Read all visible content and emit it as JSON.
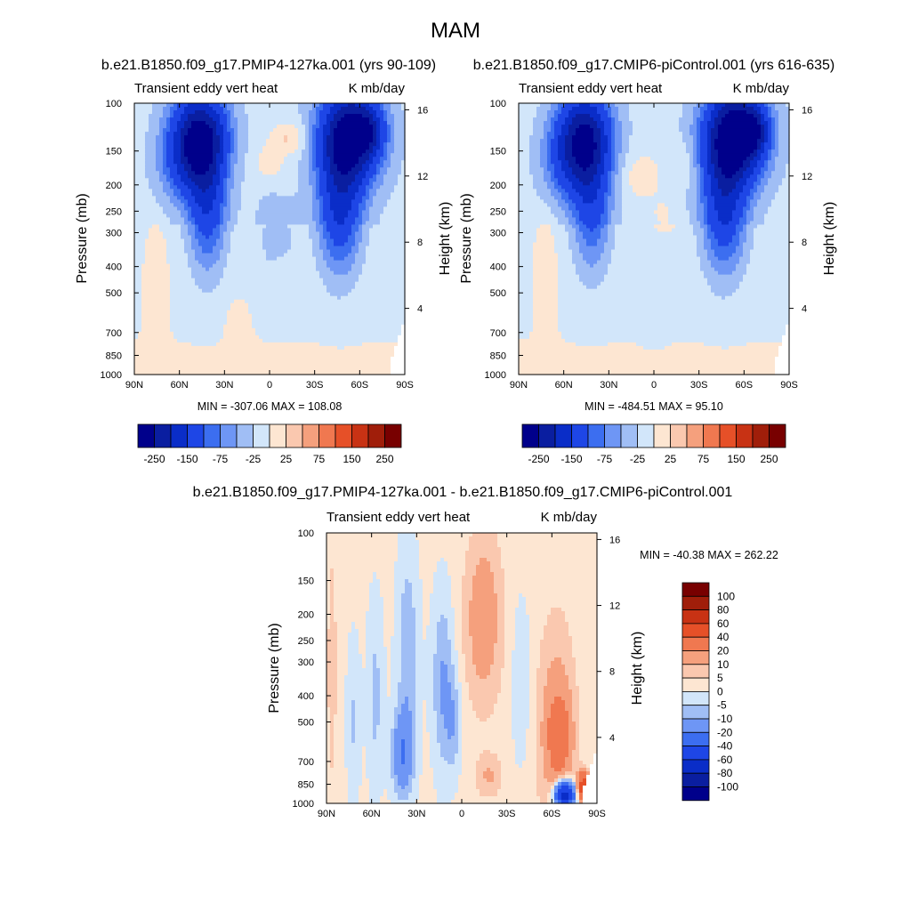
{
  "figure_title": "MAM",
  "colors": {
    "cb_main": [
      "#00008b",
      "#0a1ea0",
      "#0a2dc8",
      "#1e46e6",
      "#3c6ef0",
      "#6e96f5",
      "#a0bef5",
      "#d2e6fa",
      "#fde6d2",
      "#fac8af",
      "#f5a07d",
      "#f07850",
      "#e65028",
      "#c83214",
      "#a01e0a",
      "#780000"
    ],
    "cb_diff": [
      "#00008b",
      "#0a1ea0",
      "#0a2dc8",
      "#1e46e6",
      "#3c6ef0",
      "#6e96f5",
      "#a0bef5",
      "#d2e6fa",
      "#fde6d2",
      "#fac8af",
      "#f5a07d",
      "#f07850",
      "#e65028",
      "#c83214",
      "#a01e0a",
      "#780000"
    ]
  },
  "chart_data": [
    {
      "type": "heatmap",
      "panel": "left",
      "run_title": "b.e21.B1850.f09_g17.PMIP4-127ka.001 (yrs 90-109)",
      "left_label": "Transient eddy vert heat",
      "right_label": "K mb/day",
      "xlabel": "",
      "ylabel": "Pressure (mb)",
      "y2label": "Height (km)",
      "x_ticks": [
        "90N",
        "60N",
        "30N",
        "0",
        "30S",
        "60S",
        "90S"
      ],
      "x_tick_values": [
        90,
        60,
        30,
        0,
        -30,
        -60,
        -90
      ],
      "y_ticks": [
        "100",
        "150",
        "200",
        "250",
        "300",
        "400",
        "500",
        "700",
        "850",
        "1000"
      ],
      "y_tick_values": [
        100,
        150,
        200,
        250,
        300,
        400,
        500,
        700,
        850,
        1000
      ],
      "y2_ticks": [
        "16",
        "12",
        "8",
        "4"
      ],
      "y2_tick_values": [
        16,
        12,
        8,
        4
      ],
      "ylim": [
        1000,
        100
      ],
      "stats": "MIN = -307.06  MAX = 108.08",
      "colorbar_labels": [
        "-250",
        "-150",
        "-75",
        "-25",
        "25",
        "75",
        "150",
        "250"
      ]
    },
    {
      "type": "heatmap",
      "panel": "right",
      "run_title": "b.e21.B1850.f09_g17.CMIP6-piControl.001 (yrs 616-635)",
      "left_label": "Transient eddy vert heat",
      "right_label": "K mb/day",
      "xlabel": "",
      "ylabel": "Pressure (mb)",
      "y2label": "Height (km)",
      "x_ticks": [
        "90N",
        "60N",
        "30N",
        "0",
        "30S",
        "60S",
        "90S"
      ],
      "x_tick_values": [
        90,
        60,
        30,
        0,
        -30,
        -60,
        -90
      ],
      "y_ticks": [
        "100",
        "150",
        "200",
        "250",
        "300",
        "400",
        "500",
        "700",
        "850",
        "1000"
      ],
      "y_tick_values": [
        100,
        150,
        200,
        250,
        300,
        400,
        500,
        700,
        850,
        1000
      ],
      "y2_ticks": [
        "16",
        "12",
        "8",
        "4"
      ],
      "y2_tick_values": [
        16,
        12,
        8,
        4
      ],
      "ylim": [
        1000,
        100
      ],
      "stats": "MIN = -484.51  MAX =  95.10",
      "colorbar_labels": [
        "-250",
        "-150",
        "-75",
        "-25",
        "25",
        "75",
        "150",
        "250"
      ]
    },
    {
      "type": "heatmap",
      "panel": "difference",
      "run_title": "b.e21.B1850.f09_g17.PMIP4-127ka.001 - b.e21.B1850.f09_g17.CMIP6-piControl.001",
      "left_label": "Transient eddy vert heat",
      "right_label": "K mb/day",
      "xlabel": "",
      "ylabel": "Pressure (mb)",
      "y2label": "Height (km)",
      "x_ticks": [
        "90N",
        "60N",
        "30N",
        "0",
        "30S",
        "60S",
        "90S"
      ],
      "x_tick_values": [
        90,
        60,
        30,
        0,
        -30,
        -60,
        -90
      ],
      "y_ticks": [
        "100",
        "150",
        "200",
        "250",
        "300",
        "400",
        "500",
        "700",
        "850",
        "1000"
      ],
      "y_tick_values": [
        100,
        150,
        200,
        250,
        300,
        400,
        500,
        700,
        850,
        1000
      ],
      "y2_ticks": [
        "16",
        "12",
        "8",
        "4"
      ],
      "y2_tick_values": [
        16,
        12,
        8,
        4
      ],
      "ylim": [
        1000,
        100
      ],
      "stats": "MIN = -40.38  MAX = 262.22",
      "colorbar_labels": [
        "100",
        "80",
        "60",
        "40",
        "20",
        "10",
        "5",
        "0",
        "-5",
        "-10",
        "-20",
        "-40",
        "-60",
        "-80",
        "-100"
      ]
    }
  ]
}
